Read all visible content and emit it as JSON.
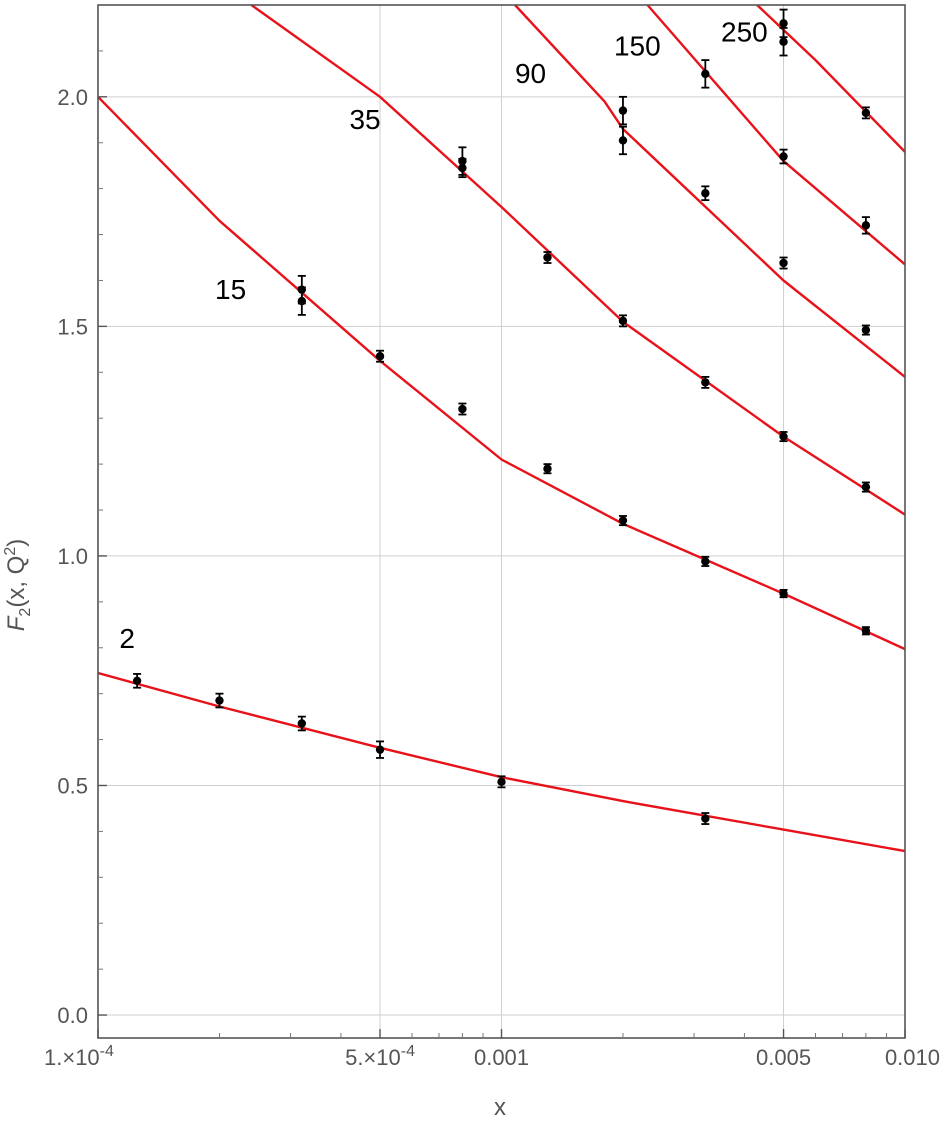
{
  "chart_data": {
    "type": "scatter",
    "title": "",
    "xlabel": "x",
    "ylabel": "F2(x,Q2)",
    "xscale": "log",
    "xlim": [
      0.0001,
      0.01
    ],
    "ylim": [
      -0.05,
      2.2
    ],
    "grid": true,
    "x_ticks": [
      {
        "value": 0.0001,
        "label": "1.×10",
        "exp": "-4"
      },
      {
        "value": 0.0005,
        "label": "5.×10",
        "exp": "-4"
      },
      {
        "value": 0.001,
        "label": "0.001",
        "exp": ""
      },
      {
        "value": 0.005,
        "label": "0.005",
        "exp": ""
      },
      {
        "value": 0.01,
        "label": "0.010",
        "exp": ""
      }
    ],
    "y_ticks": [
      {
        "value": 0.0,
        "label": "0.0"
      },
      {
        "value": 0.5,
        "label": "0.5"
      },
      {
        "value": 1.0,
        "label": "1.0"
      },
      {
        "value": 1.5,
        "label": "1.5"
      },
      {
        "value": 2.0,
        "label": "2.0"
      }
    ],
    "curve_color": "#e8121a",
    "marker_color": "#000000",
    "series": [
      {
        "name": "2",
        "label_at": [
          0.000113,
          0.8
        ],
        "curve": [
          [
            0.0001,
            0.745
          ],
          [
            0.0002,
            0.672
          ],
          [
            0.0005,
            0.582
          ],
          [
            0.001,
            0.518
          ],
          [
            0.002,
            0.466
          ],
          [
            0.005,
            0.404
          ],
          [
            0.01,
            0.357
          ]
        ],
        "points": [
          {
            "x": 0.000125,
            "y": 0.728,
            "err": 0.015
          },
          {
            "x": 0.0002,
            "y": 0.685,
            "err": 0.015
          },
          {
            "x": 0.00032,
            "y": 0.635,
            "err": 0.015
          },
          {
            "x": 0.0005,
            "y": 0.578,
            "err": 0.018
          },
          {
            "x": 0.001,
            "y": 0.508,
            "err": 0.012
          },
          {
            "x": 0.0032,
            "y": 0.428,
            "err": 0.012
          }
        ]
      },
      {
        "name": "15",
        "label_at": [
          0.000195,
          1.56
        ],
        "curve": [
          [
            0.0001,
            2.0
          ],
          [
            0.0002,
            1.73
          ],
          [
            0.0005,
            1.425
          ],
          [
            0.001,
            1.21
          ],
          [
            0.002,
            1.07
          ],
          [
            0.005,
            0.918
          ],
          [
            0.01,
            0.797
          ]
        ],
        "points": [
          {
            "x": 0.00032,
            "y": 1.58,
            "err": 0.03
          },
          {
            "x": 0.00032,
            "y": 1.555,
            "err": 0.03
          },
          {
            "x": 0.0005,
            "y": 1.435,
            "err": 0.012
          },
          {
            "x": 0.0008,
            "y": 1.32,
            "err": 0.012
          },
          {
            "x": 0.0013,
            "y": 1.19,
            "err": 0.01
          },
          {
            "x": 0.002,
            "y": 1.077,
            "err": 0.01
          },
          {
            "x": 0.0032,
            "y": 0.988,
            "err": 0.01
          },
          {
            "x": 0.005,
            "y": 0.918,
            "err": 0.008
          },
          {
            "x": 0.008,
            "y": 0.837,
            "err": 0.008
          }
        ]
      },
      {
        "name": "35",
        "label_at": [
          0.00042,
          1.93
        ],
        "curve": [
          [
            0.00024,
            2.2
          ],
          [
            0.0005,
            2.0
          ],
          [
            0.001,
            1.76
          ],
          [
            0.002,
            1.51
          ],
          [
            0.005,
            1.26
          ],
          [
            0.01,
            1.09
          ]
        ],
        "points": [
          {
            "x": 0.0008,
            "y": 1.86,
            "err": 0.03
          },
          {
            "x": 0.0008,
            "y": 1.845,
            "err": 0.02
          },
          {
            "x": 0.0013,
            "y": 1.65,
            "err": 0.012
          },
          {
            "x": 0.002,
            "y": 1.512,
            "err": 0.012
          },
          {
            "x": 0.0032,
            "y": 1.378,
            "err": 0.012
          },
          {
            "x": 0.005,
            "y": 1.26,
            "err": 0.01
          },
          {
            "x": 0.008,
            "y": 1.15,
            "err": 0.01
          }
        ]
      },
      {
        "name": "90",
        "label_at": [
          0.00108,
          2.03
        ],
        "curve": [
          [
            0.00108,
            2.2
          ],
          [
            0.0018,
            1.99
          ],
          [
            0.002,
            1.93
          ],
          [
            0.005,
            1.6
          ],
          [
            0.01,
            1.39
          ]
        ],
        "points": [
          {
            "x": 0.002,
            "y": 1.97,
            "err": 0.03
          },
          {
            "x": 0.002,
            "y": 1.905,
            "err": 0.03
          },
          {
            "x": 0.0032,
            "y": 1.79,
            "err": 0.015
          },
          {
            "x": 0.005,
            "y": 1.638,
            "err": 0.012
          },
          {
            "x": 0.008,
            "y": 1.492,
            "err": 0.01
          }
        ]
      },
      {
        "name": "150",
        "label_at": [
          0.0019,
          2.09
        ],
        "curve": [
          [
            0.0023,
            2.2
          ],
          [
            0.005,
            1.86
          ],
          [
            0.01,
            1.635
          ]
        ],
        "points": [
          {
            "x": 0.0032,
            "y": 2.05,
            "err": 0.03
          },
          {
            "x": 0.005,
            "y": 1.87,
            "err": 0.015
          },
          {
            "x": 0.008,
            "y": 1.72,
            "err": 0.018
          }
        ]
      },
      {
        "name": "250",
        "label_at": [
          0.0035,
          2.12
        ],
        "curve": [
          [
            0.0043,
            2.2
          ],
          [
            0.006,
            2.08
          ],
          [
            0.01,
            1.88
          ]
        ],
        "points": [
          {
            "x": 0.005,
            "y": 2.16,
            "err": 0.03
          },
          {
            "x": 0.005,
            "y": 2.12,
            "err": 0.03
          },
          {
            "x": 0.008,
            "y": 1.965,
            "err": 0.012
          }
        ]
      }
    ]
  }
}
